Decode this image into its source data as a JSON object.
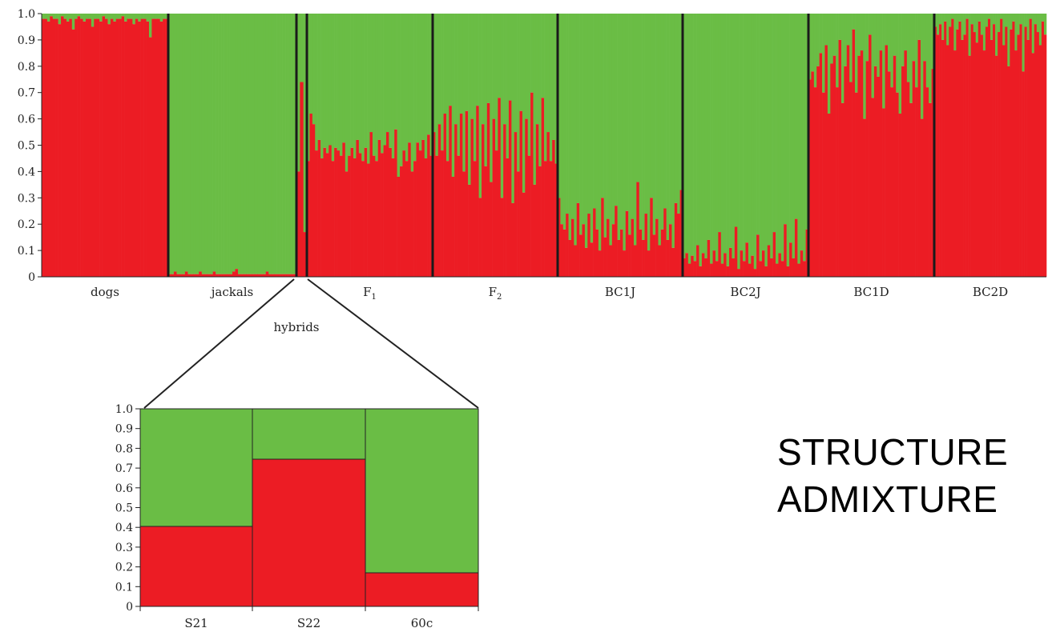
{
  "chart_data": [
    {
      "type": "bar",
      "subtype": "stacked-admixture",
      "ylim": [
        0,
        1
      ],
      "yticks": [
        "0",
        "0.1",
        "0.2",
        "0.3",
        "0.4",
        "0.5",
        "0.6",
        "0.7",
        "0.8",
        "0.9",
        "1.0"
      ],
      "colors": {
        "red": "#ec1c24",
        "green": "#6abd45",
        "separator": "#1a1a1a"
      },
      "groups": [
        {
          "label": "dogs",
          "subscript": "",
          "red": [
            0.98,
            0.98,
            0.97,
            0.99,
            0.98,
            0.98,
            0.96,
            0.99,
            0.98,
            0.97,
            0.98,
            0.94,
            0.98,
            0.99,
            0.98,
            0.97,
            0.98,
            0.98,
            0.95,
            0.98,
            0.98,
            0.97,
            0.99,
            0.98,
            0.96,
            0.98,
            0.97,
            0.98,
            0.98,
            0.99,
            0.97,
            0.98,
            0.98,
            0.96,
            0.98,
            0.97,
            0.98,
            0.98,
            0.97,
            0.91,
            0.98,
            0.98,
            0.98,
            0.97,
            0.98,
            0.98
          ]
        },
        {
          "label": "jackals",
          "subscript": "",
          "red": [
            0.01,
            0.01,
            0.02,
            0.01,
            0.01,
            0.01,
            0.02,
            0.01,
            0.01,
            0.01,
            0.01,
            0.02,
            0.01,
            0.01,
            0.01,
            0.01,
            0.02,
            0.01,
            0.01,
            0.01,
            0.01,
            0.01,
            0.01,
            0.02,
            0.03,
            0.01,
            0.01,
            0.01,
            0.01,
            0.01,
            0.01,
            0.01,
            0.01,
            0.01,
            0.01,
            0.02,
            0.01,
            0.01,
            0.01,
            0.01,
            0.01,
            0.01,
            0.01,
            0.01,
            0.01,
            0.01
          ]
        },
        {
          "label": "",
          "subscript": "",
          "red": [
            0.4,
            0.74,
            0.17
          ]
        },
        {
          "label": "F",
          "subscript": "1",
          "red": [
            0.44,
            0.62,
            0.58,
            0.48,
            0.52,
            0.45,
            0.49,
            0.47,
            0.5,
            0.44,
            0.49,
            0.48,
            0.46,
            0.51,
            0.4,
            0.46,
            0.49,
            0.45,
            0.52,
            0.47,
            0.44,
            0.49,
            0.43,
            0.55,
            0.46,
            0.44,
            0.52,
            0.47,
            0.5,
            0.55,
            0.49,
            0.45,
            0.56,
            0.38,
            0.42,
            0.48,
            0.44,
            0.51,
            0.4,
            0.44,
            0.51,
            0.48,
            0.52,
            0.45,
            0.54,
            0.46
          ]
        },
        {
          "label": "F",
          "subscript": "2",
          "red": [
            0.55,
            0.46,
            0.58,
            0.48,
            0.62,
            0.44,
            0.65,
            0.38,
            0.58,
            0.46,
            0.62,
            0.4,
            0.63,
            0.35,
            0.6,
            0.44,
            0.65,
            0.3,
            0.58,
            0.42,
            0.66,
            0.36,
            0.6,
            0.48,
            0.68,
            0.3,
            0.58,
            0.45,
            0.67,
            0.28,
            0.55,
            0.4,
            0.63,
            0.32,
            0.6,
            0.46,
            0.7,
            0.35,
            0.58,
            0.42,
            0.68,
            0.44,
            0.55,
            0.44,
            0.52,
            0.43
          ]
        },
        {
          "label": "BC1J",
          "subscript": "",
          "red": [
            0.3,
            0.2,
            0.18,
            0.24,
            0.14,
            0.22,
            0.12,
            0.28,
            0.16,
            0.2,
            0.11,
            0.24,
            0.13,
            0.26,
            0.18,
            0.1,
            0.3,
            0.15,
            0.22,
            0.12,
            0.2,
            0.27,
            0.14,
            0.18,
            0.1,
            0.25,
            0.16,
            0.22,
            0.12,
            0.36,
            0.18,
            0.14,
            0.24,
            0.1,
            0.3,
            0.16,
            0.22,
            0.12,
            0.18,
            0.26,
            0.14,
            0.2,
            0.11,
            0.28,
            0.24,
            0.33
          ]
        },
        {
          "label": "BC2J",
          "subscript": "",
          "red": [
            0.07,
            0.09,
            0.05,
            0.08,
            0.06,
            0.12,
            0.04,
            0.09,
            0.07,
            0.14,
            0.05,
            0.1,
            0.06,
            0.17,
            0.05,
            0.09,
            0.04,
            0.11,
            0.07,
            0.19,
            0.03,
            0.1,
            0.06,
            0.13,
            0.05,
            0.08,
            0.03,
            0.16,
            0.06,
            0.1,
            0.04,
            0.12,
            0.07,
            0.17,
            0.05,
            0.09,
            0.06,
            0.2,
            0.04,
            0.13,
            0.07,
            0.22,
            0.05,
            0.1,
            0.06,
            0.18
          ]
        },
        {
          "label": "BC1D",
          "subscript": "",
          "red": [
            0.75,
            0.78,
            0.72,
            0.8,
            0.85,
            0.7,
            0.88,
            0.62,
            0.81,
            0.84,
            0.72,
            0.9,
            0.66,
            0.8,
            0.88,
            0.74,
            0.94,
            0.7,
            0.84,
            0.86,
            0.6,
            0.82,
            0.92,
            0.68,
            0.8,
            0.76,
            0.86,
            0.64,
            0.88,
            0.78,
            0.72,
            0.84,
            0.7,
            0.62,
            0.8,
            0.86,
            0.74,
            0.66,
            0.82,
            0.72,
            0.9,
            0.6,
            0.82,
            0.72,
            0.66,
            0.79
          ]
        },
        {
          "label": "BC2D",
          "subscript": "",
          "red": [
            0.95,
            0.92,
            0.96,
            0.9,
            0.97,
            0.88,
            0.95,
            0.98,
            0.86,
            0.94,
            0.97,
            0.9,
            0.92,
            0.98,
            0.84,
            0.96,
            0.93,
            0.89,
            0.97,
            0.92,
            0.86,
            0.95,
            0.98,
            0.9,
            0.96,
            0.84,
            0.93,
            0.98,
            0.88,
            0.95,
            0.8,
            0.94,
            0.97,
            0.86,
            0.92,
            0.96,
            0.78,
            0.95,
            0.9,
            0.98,
            0.85,
            0.96,
            0.93,
            0.88,
            0.97,
            0.92
          ]
        }
      ],
      "annotation": "hybrids"
    },
    {
      "type": "bar",
      "subtype": "stacked-admixture-zoom",
      "ylim": [
        0,
        1
      ],
      "yticks": [
        "0",
        "0.1",
        "0.2",
        "0.3",
        "0.4",
        "0.5",
        "0.6",
        "0.7",
        "0.8",
        "0.9",
        "1.0"
      ],
      "categories": [
        "S21",
        "S22",
        "60c"
      ],
      "series": [
        {
          "values": [
            0.405,
            0.745,
            0.17
          ],
          "color": "#ec1c24"
        },
        {
          "values": [
            0.595,
            0.255,
            0.83
          ],
          "color": "#6abd45"
        }
      ]
    }
  ],
  "labels": {
    "line1": "STRUCTURE",
    "line2": "ADMIXTURE"
  }
}
